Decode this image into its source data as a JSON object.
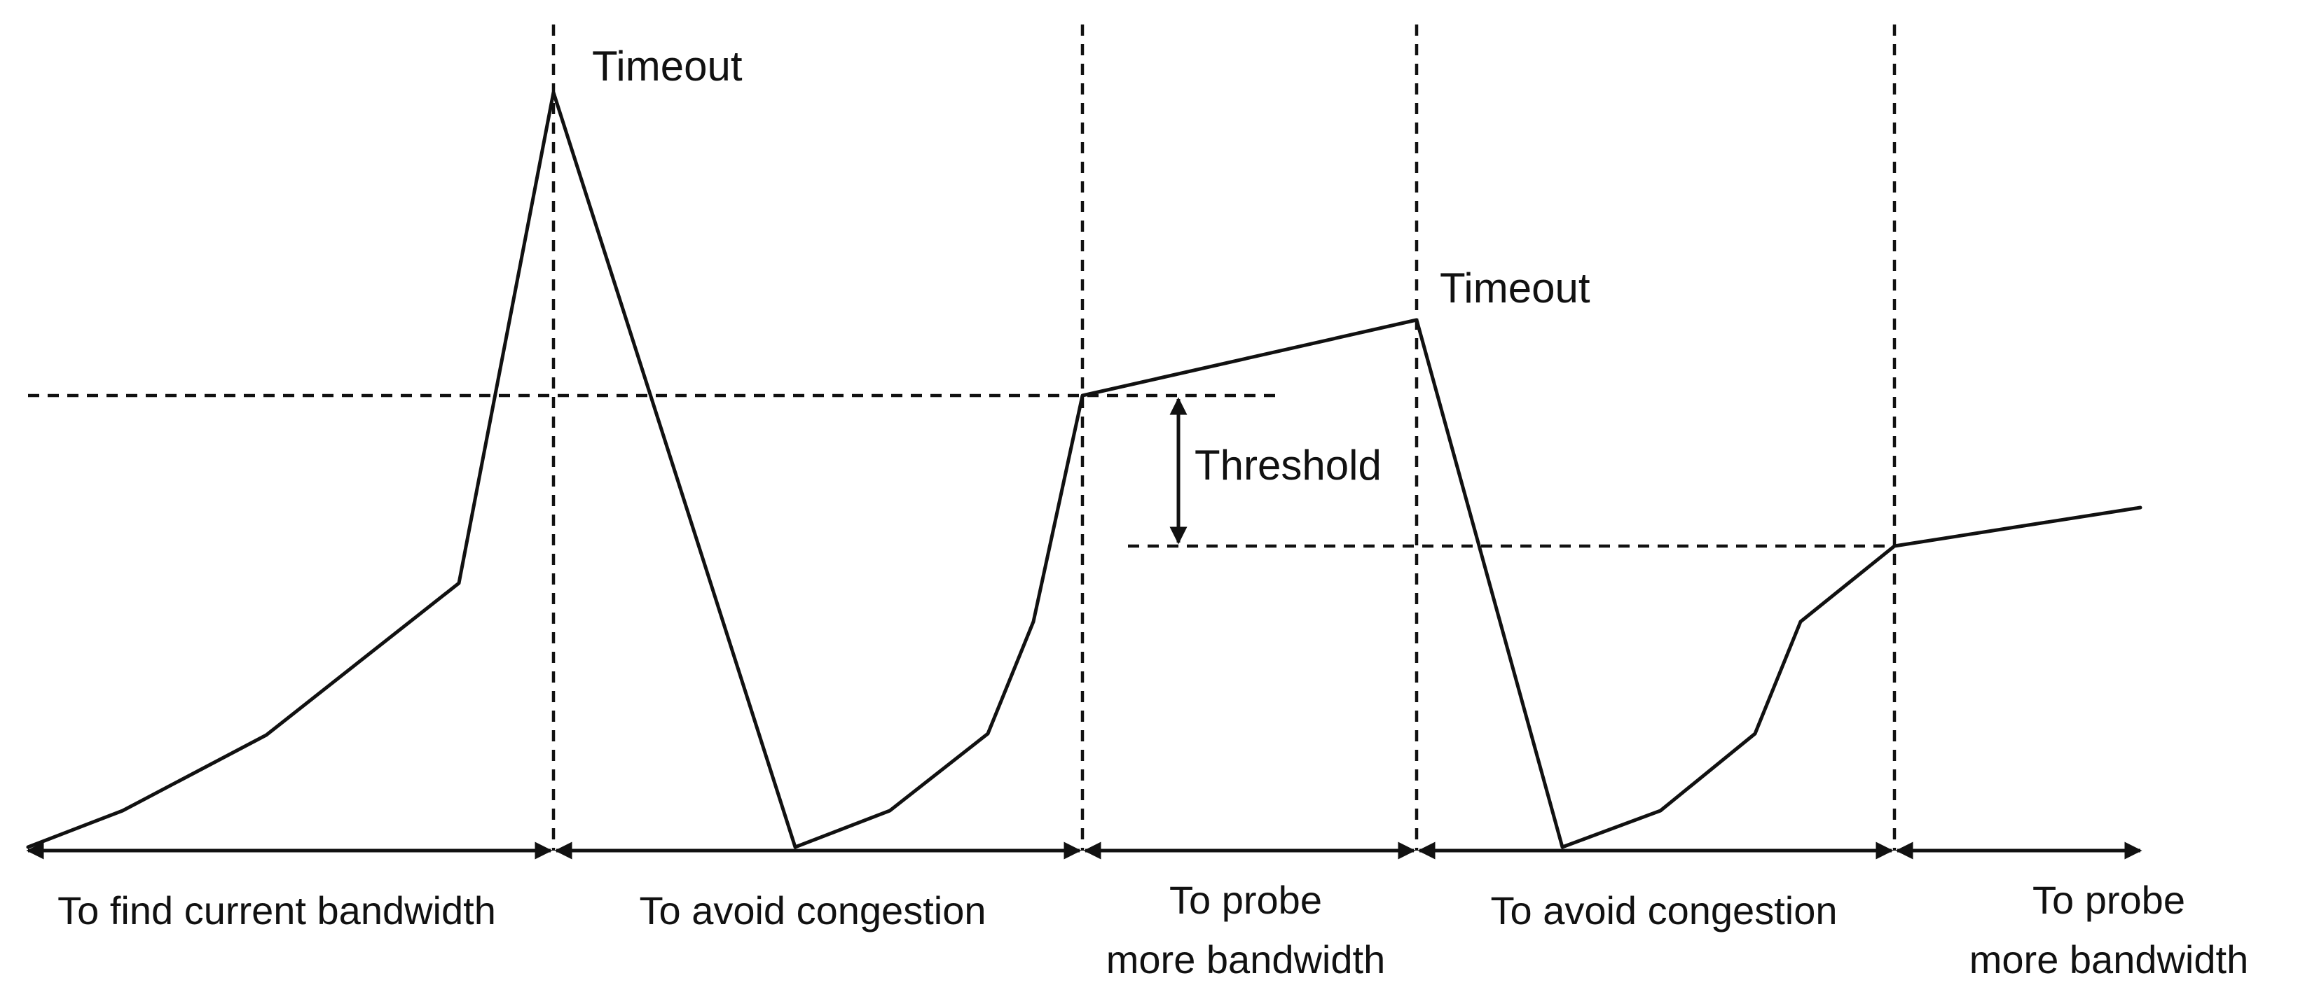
{
  "annotations": {
    "timeout_1": "Timeout",
    "timeout_2": "Timeout",
    "threshold": "Threshold"
  },
  "phases": [
    {
      "line1": "To find current bandwidth",
      "line2": ""
    },
    {
      "line1": "To avoid congestion",
      "line2": ""
    },
    {
      "line1": "To probe",
      "line2": "more bandwidth"
    },
    {
      "line1": "To avoid congestion",
      "line2": ""
    },
    {
      "line1": "To probe",
      "line2": "more bandwidth"
    }
  ],
  "colors": {
    "stroke": "#111111",
    "background": "#ffffff"
  }
}
